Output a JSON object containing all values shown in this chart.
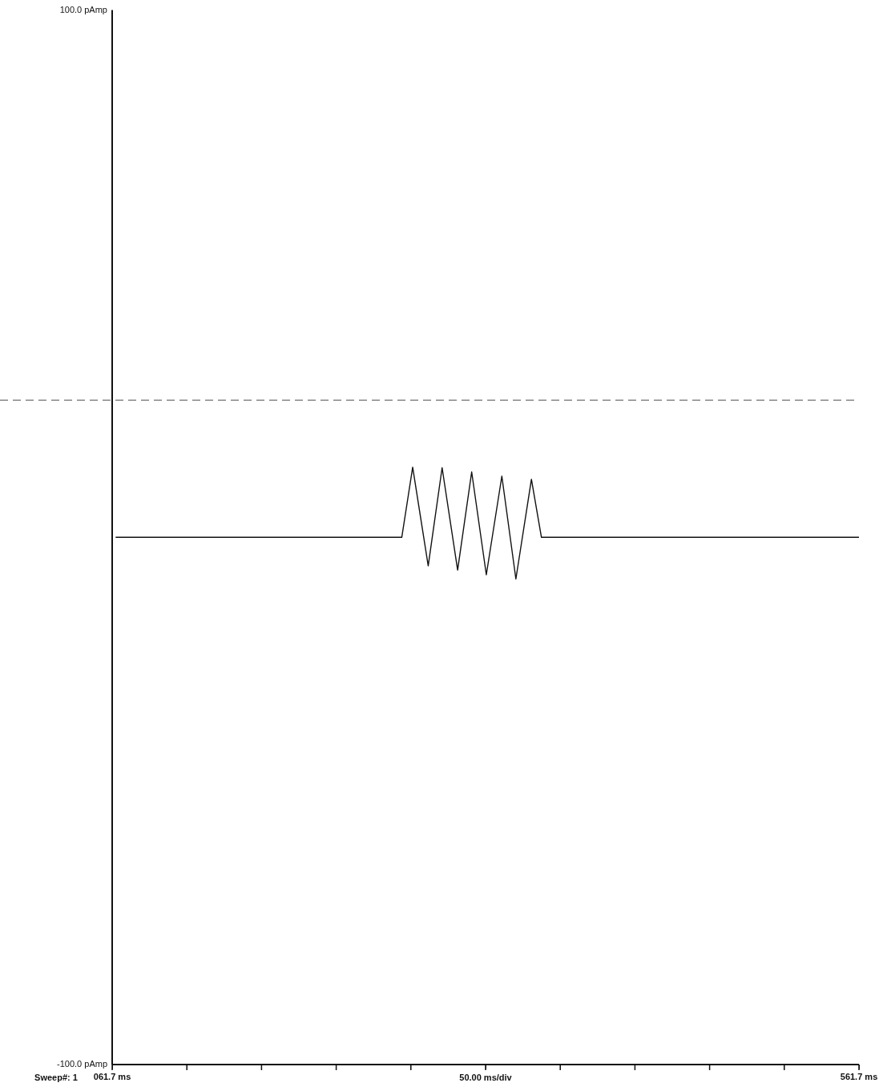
{
  "chart_data": {
    "type": "line",
    "xlabel": "50.00 ms/div",
    "annotations": [
      "Sweep#: 1"
    ],
    "xlim": [
      61.7,
      561.7
    ],
    "xticks": [
      {
        "value": 61.7,
        "label": "061.7 ms"
      },
      {
        "value": 111.7,
        "label": null
      },
      {
        "value": 161.7,
        "label": null
      },
      {
        "value": 211.7,
        "label": null
      },
      {
        "value": 261.7,
        "label": null
      },
      {
        "value": 311.7,
        "label": null
      },
      {
        "value": 361.7,
        "label": null
      },
      {
        "value": 411.7,
        "label": null
      },
      {
        "value": 461.7,
        "label": null
      },
      {
        "value": 511.7,
        "label": null
      },
      {
        "value": 561.7,
        "label": "561.7 ms"
      }
    ],
    "ylim": [
      -100,
      100
    ],
    "yticks": [
      {
        "value": -100,
        "label": "-100.0 pAmp"
      },
      {
        "value": 100,
        "label": "100.0 pAmp"
      }
    ],
    "grid": false,
    "legend": false,
    "marker": "none",
    "line_style": "solid",
    "ref_lines": [
      {
        "axis": "y",
        "value": 26,
        "color": "#888888",
        "line_style": "dashed"
      }
    ],
    "series": [
      {
        "color": "#111111",
        "x": [
          64,
          255.6,
          262.9,
          273.3,
          282.6,
          293.0,
          302.4,
          312.2,
          322.6,
          332.0,
          342.4,
          349.1,
          561.7
        ],
        "values": [
          0,
          0,
          13.3,
          -5.4,
          13.2,
          -6.2,
          12.4,
          -7.1,
          11.6,
          -7.9,
          11.0,
          0,
          0
        ]
      }
    ]
  }
}
